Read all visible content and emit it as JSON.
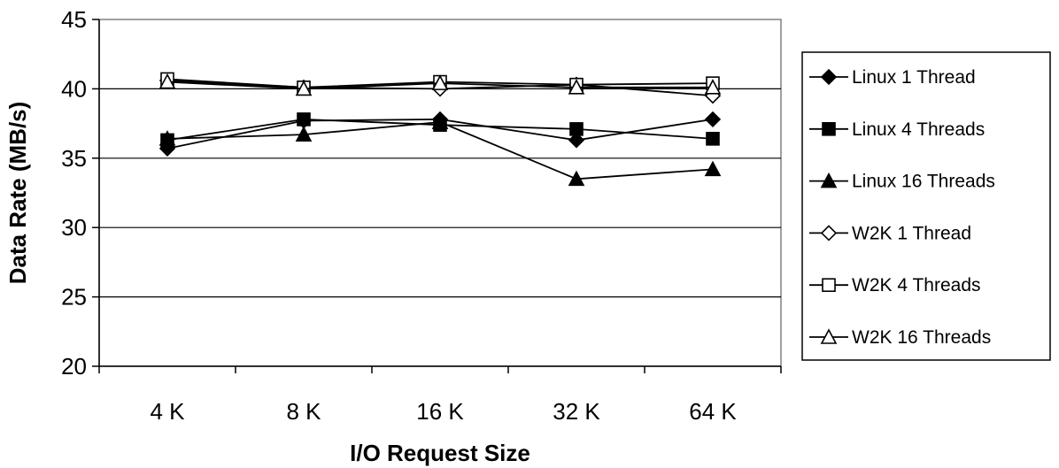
{
  "chart_data": {
    "type": "line",
    "title": "",
    "xlabel": "I/O Request Size",
    "ylabel": "Data Rate (MB/s)",
    "categories": [
      "4 K",
      "8 K",
      "16 K",
      "32 K",
      "64 K"
    ],
    "ylim": [
      20,
      45
    ],
    "yticks": [
      20,
      25,
      30,
      35,
      40,
      45
    ],
    "grid": "horizontal",
    "legend_position": "right",
    "series": [
      {
        "name": "Linux 1 Thread",
        "marker": "diamond",
        "filled": true,
        "values": [
          35.7,
          37.7,
          37.8,
          36.3,
          37.8
        ]
      },
      {
        "name": "Linux 4 Threads",
        "marker": "square",
        "filled": true,
        "values": [
          36.3,
          37.8,
          37.4,
          37.1,
          36.4
        ]
      },
      {
        "name": "Linux 16 Threads",
        "marker": "triangle",
        "filled": true,
        "values": [
          36.4,
          36.7,
          37.6,
          33.5,
          34.2
        ]
      },
      {
        "name": "W2K 1 Thread",
        "marker": "diamond",
        "filled": false,
        "values": [
          40.6,
          40.1,
          40.0,
          40.3,
          39.5
        ]
      },
      {
        "name": "W2K 4 Threads",
        "marker": "square",
        "filled": false,
        "values": [
          40.7,
          40.1,
          40.5,
          40.3,
          40.4
        ]
      },
      {
        "name": "W2K 16 Threads",
        "marker": "triangle",
        "filled": false,
        "values": [
          40.5,
          40.0,
          40.4,
          40.1,
          40.1
        ]
      }
    ]
  }
}
